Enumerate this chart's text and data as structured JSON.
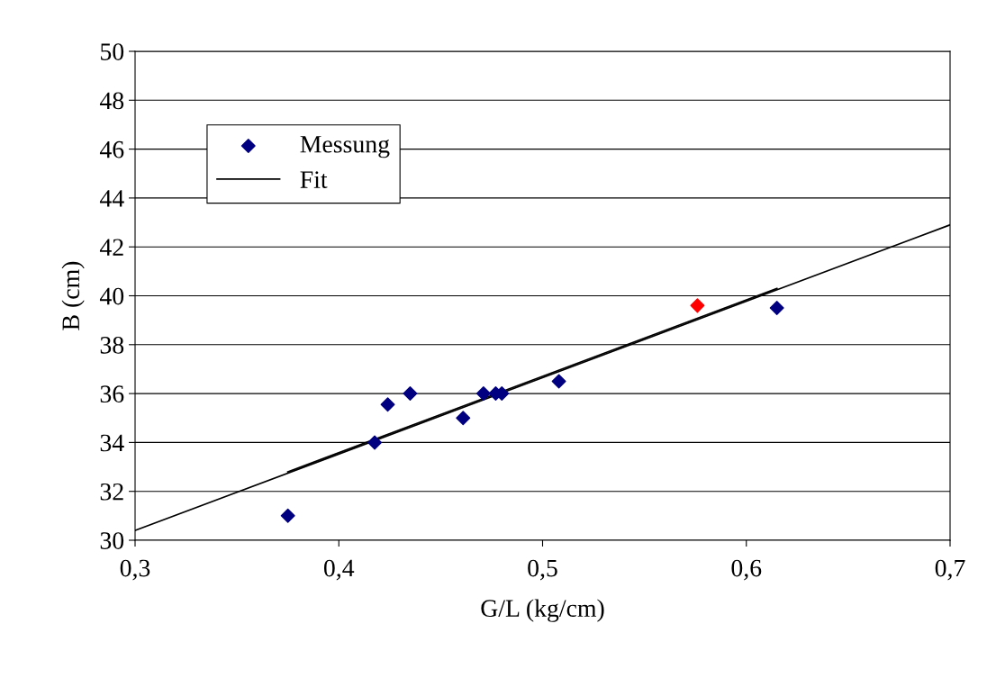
{
  "chart_data": {
    "type": "scatter",
    "xlabel": "G/L (kg/cm)",
    "ylabel": "B (cm)",
    "series": [
      {
        "name": "Messung",
        "color": "#000080",
        "marker": "diamond",
        "x": [
          0.375,
          0.4176,
          0.424,
          0.435,
          0.461,
          0.471,
          0.477,
          0.48,
          0.508,
          0.615
        ],
        "values": [
          31.0,
          34.0,
          35.55,
          36.0,
          35.0,
          36.0,
          36.0,
          36.0,
          36.5,
          39.5
        ]
      },
      {
        "color": "#ff0000",
        "marker": "diamond",
        "x": [
          0.576
        ],
        "values": [
          39.6
        ]
      },
      {
        "name": "Fit",
        "type": "line",
        "color": "#000000",
        "line_style": "solid",
        "marker": "none",
        "x": [
          0.3,
          0.7
        ],
        "values": [
          30.4,
          42.9
        ]
      },
      {
        "type": "line",
        "color": "#000000",
        "line_style": "solid",
        "marker": "none",
        "x": [
          0.375,
          0.615
        ],
        "values": [
          32.8,
          40.3
        ]
      }
    ],
    "xlim": [
      0.3,
      0.7
    ],
    "xticks": [
      {
        "value": 0.3,
        "label": "0,3"
      },
      {
        "value": 0.4,
        "label": "0,4"
      },
      {
        "value": 0.5,
        "label": "0,5"
      },
      {
        "value": 0.6,
        "label": "0,6"
      },
      {
        "value": 0.7,
        "label": "0,7"
      }
    ],
    "ylim": [
      30,
      50
    ],
    "yticks": [
      30,
      32,
      34,
      36,
      38,
      40,
      42,
      44,
      46,
      48,
      50
    ],
    "grid": "y",
    "legend": "top left"
  }
}
